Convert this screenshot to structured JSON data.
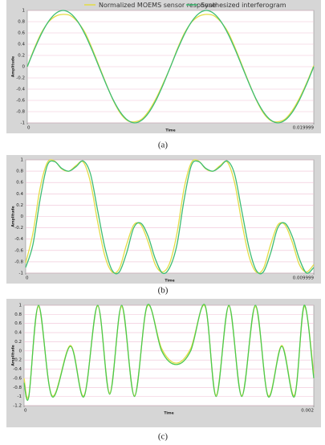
{
  "chart_data": [
    {
      "type": "line",
      "caption": "(a)",
      "xlabel": "Time",
      "ylabel": "Amplitude",
      "x": [
        0,
        0.0005,
        0.001,
        0.0015,
        0.002,
        0.0025,
        0.003,
        0.0035,
        0.004,
        0.0045,
        0.005,
        0.0055,
        0.006,
        0.0065,
        0.007,
        0.0075,
        0.008,
        0.0085,
        0.009,
        0.0095,
        0.01,
        0.0105,
        0.011,
        0.0115,
        0.012,
        0.0125,
        0.013,
        0.0135,
        0.014,
        0.0145,
        0.015,
        0.0155,
        0.016,
        0.0165,
        0.017,
        0.0175,
        0.018,
        0.0185,
        0.019,
        0.0195,
        0.019999
      ],
      "series": [
        {
          "name": "Normalized MOEMS sensor response",
          "color": "#e3dd45",
          "values": [
            0,
            0.33,
            0.61,
            0.8,
            0.9,
            0.93,
            0.91,
            0.8,
            0.62,
            0.34,
            0.02,
            -0.3,
            -0.6,
            -0.83,
            -0.96,
            -0.98,
            -0.93,
            -0.78,
            -0.56,
            -0.29,
            0,
            0.33,
            0.61,
            0.8,
            0.9,
            0.93,
            0.91,
            0.8,
            0.62,
            0.34,
            0.02,
            -0.3,
            -0.6,
            -0.83,
            -0.96,
            -0.98,
            -0.93,
            -0.78,
            -0.56,
            -0.29,
            0.02
          ]
        },
        {
          "name": "Synthesized interferogram",
          "color": "#3dbd73",
          "values": [
            0,
            0.31,
            0.59,
            0.81,
            0.95,
            1,
            0.95,
            0.81,
            0.59,
            0.31,
            0,
            -0.31,
            -0.59,
            -0.81,
            -0.95,
            -1,
            -0.95,
            -0.81,
            -0.59,
            -0.31,
            0,
            0.31,
            0.59,
            0.81,
            0.95,
            1,
            0.95,
            0.81,
            0.59,
            0.31,
            0,
            -0.31,
            -0.59,
            -0.81,
            -0.95,
            -1,
            -0.95,
            -0.81,
            -0.59,
            -0.31,
            0
          ]
        }
      ],
      "xlim": [
        0,
        0.019999
      ],
      "xticks": [
        0,
        0.019999
      ],
      "ylim": [
        -1,
        1
      ],
      "yticks": [
        1,
        0.8,
        0.6,
        0.4,
        0.2,
        0,
        -0.2,
        -0.4,
        -0.6,
        -0.8,
        -1
      ],
      "grid": true,
      "legend": "top"
    },
    {
      "type": "line",
      "caption": "(b)",
      "xlabel": "Time",
      "ylabel": "Amplitude",
      "x": [
        0,
        0.00025,
        0.0005,
        0.00075,
        0.001,
        0.00125,
        0.0015,
        0.00175,
        0.002,
        0.00225,
        0.0025,
        0.00275,
        0.003,
        0.00325,
        0.0035,
        0.00375,
        0.004,
        0.00425,
        0.0045,
        0.00475,
        0.005,
        0.00525,
        0.0055,
        0.00575,
        0.006,
        0.00625,
        0.0065,
        0.00675,
        0.007,
        0.00725,
        0.0075,
        0.00775,
        0.008,
        0.00825,
        0.0085,
        0.00875,
        0.009,
        0.00925,
        0.0095,
        0.00975,
        0.009999
      ],
      "series": [
        {
          "name": "Normalized MOEMS sensor response",
          "color": "#e3dd45",
          "values": [
            -0.82,
            -0.3,
            0.5,
            0.95,
            0.98,
            0.84,
            0.8,
            0.9,
            0.96,
            0.6,
            -0.1,
            -0.7,
            -0.98,
            -0.92,
            -0.5,
            -0.15,
            -0.15,
            -0.45,
            -0.85,
            -0.98,
            -0.82,
            -0.3,
            0.5,
            0.95,
            0.98,
            0.84,
            0.8,
            0.9,
            0.96,
            0.6,
            -0.1,
            -0.7,
            -0.98,
            -0.92,
            -0.5,
            -0.15,
            -0.15,
            -0.45,
            -0.85,
            -0.98,
            -0.85
          ]
        },
        {
          "name": "Synthesized interferogram",
          "color": "#3dbd73",
          "values": [
            -0.9,
            -0.5,
            0.3,
            0.9,
            0.97,
            0.85,
            0.8,
            0.88,
            0.98,
            0.75,
            0.1,
            -0.55,
            -0.95,
            -0.98,
            -0.65,
            -0.2,
            -0.12,
            -0.35,
            -0.75,
            -1,
            -0.9,
            -0.5,
            0.3,
            0.9,
            0.97,
            0.85,
            0.8,
            0.88,
            0.98,
            0.75,
            0.1,
            -0.55,
            -0.95,
            -0.98,
            -0.65,
            -0.2,
            -0.12,
            -0.35,
            -0.75,
            -1,
            -0.9
          ]
        }
      ],
      "xlim": [
        0,
        0.009999
      ],
      "xticks": [
        0,
        0.009999
      ],
      "ylim": [
        -1,
        1
      ],
      "yticks": [
        1,
        0.8,
        0.6,
        0.4,
        0.2,
        0,
        -0.2,
        -0.4,
        -0.6,
        -0.8,
        -1
      ],
      "grid": true
    },
    {
      "type": "line",
      "caption": "(c)",
      "xlabel": "Time",
      "ylabel": "Amplitude",
      "x": [
        0,
        3.3e-05,
        0.0001,
        0.000193,
        0.00032,
        0.000414,
        0.000508,
        0.000591,
        0.000674,
        0.000762,
        0.000851,
        0.00095,
        0.00105,
        0.00115,
        0.001249,
        0.001326,
        0.001414,
        0.001503,
        0.001597,
        0.001685,
        0.001779,
        0.001867,
        0.001934,
        0.002
      ],
      "series": [
        {
          "name": "Normalized MOEMS sensor response",
          "color": "#e3dd45",
          "values": [
            -0.6,
            -0.97,
            0.97,
            -0.98,
            0.12,
            -0.98,
            0.98,
            -0.92,
            0.97,
            -0.98,
            0.98,
            0.05,
            -0.27,
            0.05,
            0.98,
            -0.97,
            0.98,
            -0.98,
            0.97,
            -0.98,
            0.12,
            -0.97,
            0.97,
            -0.5
          ]
        },
        {
          "name": "Synthesized interferogram",
          "color": "#4cc94f",
          "values": [
            -0.7,
            -1,
            1,
            -1,
            0.1,
            -1,
            1,
            -0.95,
            1,
            -1,
            1,
            0,
            -0.3,
            0,
            1,
            -1,
            1,
            -1,
            1,
            -1,
            0.1,
            -1,
            1,
            -0.6
          ]
        }
      ],
      "xlim": [
        0,
        0.002
      ],
      "xticks": [
        0,
        0.002
      ],
      "ylim": [
        -1.2,
        1
      ],
      "yticks": [
        1,
        0.8,
        0.6,
        0.4,
        0.2,
        0,
        -0.2,
        -0.4,
        -0.6,
        -0.8,
        -1,
        -1.2
      ],
      "grid": true
    }
  ]
}
